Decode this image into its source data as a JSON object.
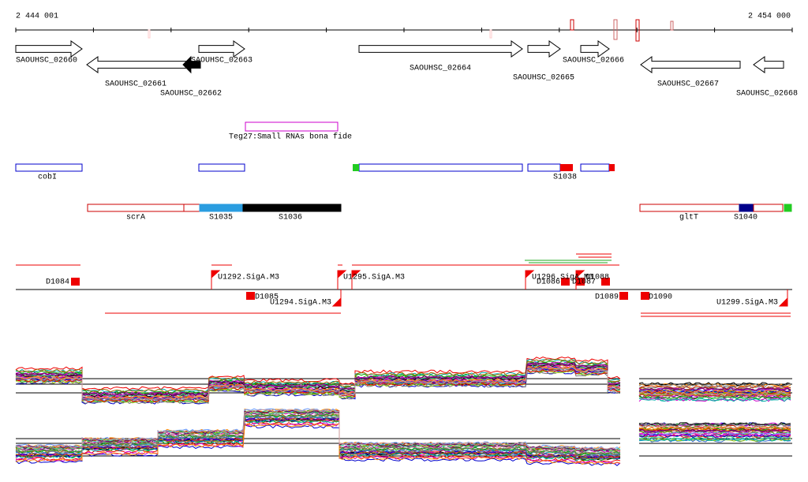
{
  "axis": {
    "start": "2 444 001",
    "end": "2 454 000"
  },
  "genes": [
    "SAOUHSC_02660",
    "SAOUHSC_02661",
    "SAOUHSC_02662",
    "SAOUHSC_02663",
    "SAOUHSC_02664",
    "SAOUHSC_02665",
    "SAOUHSC_02666",
    "SAOUHSC_02667",
    "SAOUHSC_02668"
  ],
  "srna": "Teg27:Small RNAs bona fide",
  "features": [
    "cobI",
    "S1038"
  ],
  "operons": [
    "scrA",
    "S1035",
    "S1036",
    "gltT",
    "S1040"
  ],
  "promoters": [
    "D1084",
    "U1292.SigA.M3",
    "D1085",
    "U1294.SigA.M3",
    "U1295.SigA.M3",
    "U1296.SigA.M3",
    "D1086",
    "D1087",
    "D1088",
    "D1089",
    "D1090",
    "U1299.SigA.M3"
  ]
}
